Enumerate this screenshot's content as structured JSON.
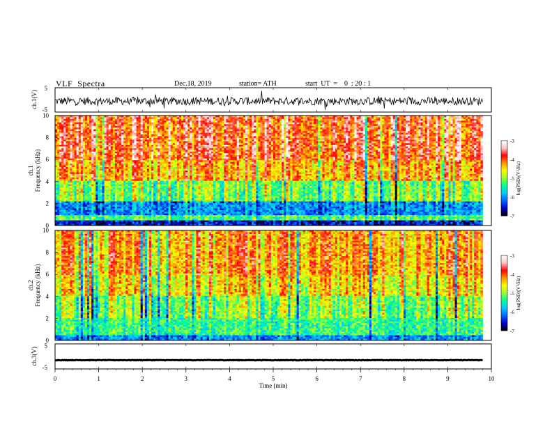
{
  "header": {
    "title": "VLF  Spectra",
    "date": "Dec.18, 2019",
    "station": "station= ATH",
    "start_ut": "start  UT  =    0  : 20 : 1"
  },
  "axes": {
    "waveform1_label": "ch.1(V)",
    "waveform3_label": "ch.3(V)",
    "spec1_label_ch": "ch.1",
    "spec2_label_ch": "ch.2",
    "freq_label": "Frequency  (kHz)",
    "time_label": "Time  (min)",
    "colorbar_label": "log(PSD)(V²/Hz)"
  },
  "chart_data": [
    {
      "type": "line",
      "name": "ch.1 waveform",
      "ylabel": "ch.1(V)",
      "ylim": [
        -5,
        5
      ],
      "yticks": [
        "5",
        "-5"
      ],
      "xlim": [
        0,
        10
      ],
      "data_end_min": 9.8,
      "mean": -0.5,
      "amplitude_approx": 1.5
    },
    {
      "type": "heatmap",
      "name": "ch.1 spectrogram",
      "xlabel": "Time  (min)",
      "ylabel": "Frequency  (kHz)",
      "xlim": [
        0,
        10
      ],
      "ylim": [
        0,
        10
      ],
      "yticks": [
        "0",
        "2",
        "4",
        "6",
        "8",
        "10"
      ],
      "data_end_min": 9.8,
      "color_scale": {
        "label": "log(PSD)(V²/Hz)",
        "range": [
          -7,
          -3
        ],
        "ticks": [
          "-3",
          "-4",
          "-5",
          "-6",
          "-7"
        ]
      },
      "bands_logpsd": [
        {
          "f_kHz": [
            0,
            0.5
          ],
          "value": -6.5
        },
        {
          "f_kHz": [
            0.5,
            1.0
          ],
          "value": -5.2
        },
        {
          "f_kHz": [
            1.0,
            2.2
          ],
          "value": -6.0
        },
        {
          "f_kHz": [
            2.2,
            4.0
          ],
          "value": -5.0
        },
        {
          "f_kHz": [
            4.0,
            6.0
          ],
          "value": -4.2
        },
        {
          "f_kHz": [
            6.0,
            10.0
          ],
          "value": -3.8
        }
      ]
    },
    {
      "type": "heatmap",
      "name": "ch.2 spectrogram",
      "xlabel": "Time  (min)",
      "ylabel": "Frequency  (kHz)",
      "xlim": [
        0,
        10
      ],
      "ylim": [
        0,
        10
      ],
      "yticks": [
        "0",
        "2",
        "4",
        "6",
        "8",
        "10"
      ],
      "data_end_min": 9.8,
      "color_scale": {
        "label": "log(PSD)(V²/Hz)",
        "range": [
          -7,
          -3
        ],
        "ticks": [
          "-3",
          "-4",
          "-5",
          "-6",
          "-7"
        ]
      },
      "bands_logpsd": [
        {
          "f_kHz": [
            0,
            0.5
          ],
          "value": -6.0
        },
        {
          "f_kHz": [
            0.5,
            2.0
          ],
          "value": -5.3
        },
        {
          "f_kHz": [
            2.0,
            4.0
          ],
          "value": -5.0
        },
        {
          "f_kHz": [
            4.0,
            6.0
          ],
          "value": -4.5
        },
        {
          "f_kHz": [
            6.0,
            10.0
          ],
          "value": -4.2
        }
      ]
    },
    {
      "type": "line",
      "name": "ch.3 waveform",
      "ylabel": "ch.3(V)",
      "xlabel": "Time  (min)",
      "ylim": [
        -5,
        5
      ],
      "yticks": [
        "5",
        "-5"
      ],
      "xlim": [
        0,
        10
      ],
      "xticks": [
        "0",
        "1",
        "2",
        "3",
        "4",
        "5",
        "6",
        "7",
        "8",
        "9",
        "10"
      ],
      "data_end_min": 9.8,
      "mean": -1.5,
      "amplitude_approx": 0.2
    }
  ],
  "colors": {
    "colormap": [
      "#000000",
      "#0000c8",
      "#0064ff",
      "#00c8ff",
      "#00ff96",
      "#96ff32",
      "#ffff00",
      "#ff9600",
      "#ff0000",
      "#ffc8c8",
      "#ffffff"
    ]
  }
}
